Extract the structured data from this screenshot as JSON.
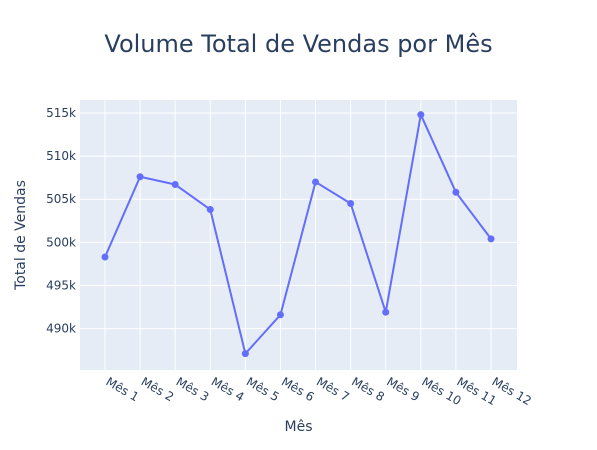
{
  "chart_data": {
    "type": "line",
    "title": "Volume Total de Vendas por Mês",
    "xlabel": "Mês",
    "ylabel": "Total de Vendas",
    "categories": [
      "Mês 1",
      "Mês 2",
      "Mês 3",
      "Mês 4",
      "Mês 5",
      "Mês 6",
      "Mês 7",
      "Mês 8",
      "Mês 9",
      "Mês 10",
      "Mês 11",
      "Mês 12"
    ],
    "series": [
      {
        "values": [
          498300,
          507600,
          506700,
          503800,
          487100,
          491600,
          507000,
          504500,
          491900,
          514800,
          505800,
          500400
        ]
      }
    ],
    "y_ticks": [
      490000,
      495000,
      500000,
      505000,
      510000,
      515000
    ],
    "y_tick_labels": [
      "490k",
      "495k",
      "500k",
      "505k",
      "510k",
      "515k"
    ],
    "ylim": [
      485200,
      516500
    ],
    "grid": true,
    "colors": {
      "plot_bg": "#e5ecf6",
      "grid": "#ffffff",
      "line": "#636efa",
      "text": "#2a3f5f"
    }
  }
}
